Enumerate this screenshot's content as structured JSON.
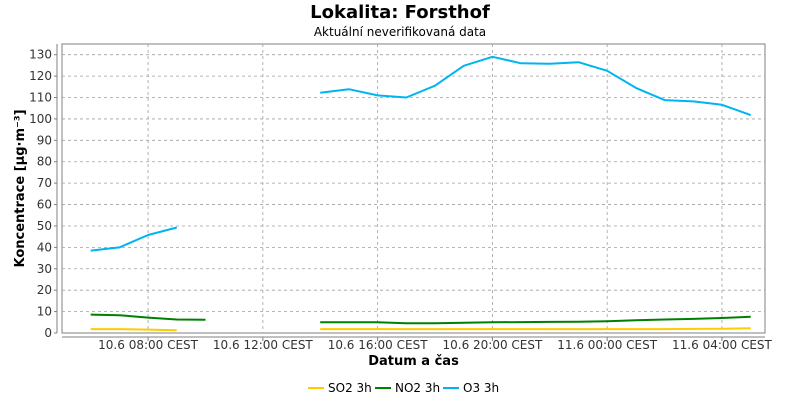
{
  "chart_data": {
    "type": "line",
    "title": "Lokalita: Forsthof",
    "subtitle": "Aktuální neverifikovaná data",
    "xlabel": "Datum a čas",
    "ylabel": "Koncentrace [µg·m⁻³]",
    "ylim": [
      0,
      135
    ],
    "yticks": [
      0,
      10,
      20,
      30,
      40,
      50,
      60,
      70,
      80,
      90,
      100,
      110,
      120,
      130
    ],
    "xlim": [
      "2024-06-10 05:00",
      "2024-06-11 05:30"
    ],
    "xticks": [
      {
        "t": "2024-06-10 08:00",
        "label": "10.6 08:00 CEST"
      },
      {
        "t": "2024-06-10 12:00",
        "label": "10.6 12:00 CEST"
      },
      {
        "t": "2024-06-10 16:00",
        "label": "10.6 16:00 CEST"
      },
      {
        "t": "2024-06-10 20:00",
        "label": "10.6 20:00 CEST"
      },
      {
        "t": "2024-06-11 00:00",
        "label": "11.6 00:00 CEST"
      },
      {
        "t": "2024-06-11 04:00",
        "label": "11.6 04:00 CEST"
      }
    ],
    "grid": true,
    "legend_position": "bottom",
    "series": [
      {
        "name": "SO2 3h",
        "color": "#ffcc00",
        "segments": [
          [
            [
              "2024-06-10 06:00",
              1.8
            ],
            [
              "2024-06-10 07:00",
              1.8
            ],
            [
              "2024-06-10 08:00",
              1.6
            ],
            [
              "2024-06-10 09:00",
              1.3
            ]
          ],
          [
            [
              "2024-06-10 14:00",
              1.8
            ],
            [
              "2024-06-10 15:00",
              1.8
            ],
            [
              "2024-06-10 16:00",
              1.8
            ],
            [
              "2024-06-10 17:00",
              1.8
            ],
            [
              "2024-06-10 18:00",
              1.8
            ],
            [
              "2024-06-10 19:00",
              1.8
            ],
            [
              "2024-06-10 20:00",
              1.8
            ],
            [
              "2024-06-10 21:00",
              1.8
            ],
            [
              "2024-06-10 22:00",
              1.8
            ],
            [
              "2024-06-10 23:00",
              1.8
            ],
            [
              "2024-06-11 00:00",
              1.8
            ],
            [
              "2024-06-11 01:00",
              1.8
            ],
            [
              "2024-06-11 02:00",
              1.8
            ],
            [
              "2024-06-11 03:00",
              1.9
            ],
            [
              "2024-06-11 04:00",
              2.0
            ],
            [
              "2024-06-11 05:00",
              2.2
            ]
          ]
        ]
      },
      {
        "name": "NO2 3h",
        "color": "#008000",
        "segments": [
          [
            [
              "2024-06-10 06:00",
              8.6
            ],
            [
              "2024-06-10 07:00",
              8.3
            ],
            [
              "2024-06-10 08:00",
              7.2
            ],
            [
              "2024-06-10 09:00",
              6.3
            ],
            [
              "2024-06-10 10:00",
              6.2
            ]
          ],
          [
            [
              "2024-06-10 14:00",
              5.0
            ],
            [
              "2024-06-10 15:00",
              5.0
            ],
            [
              "2024-06-10 16:00",
              5.0
            ],
            [
              "2024-06-10 17:00",
              4.6
            ],
            [
              "2024-06-10 18:00",
              4.6
            ],
            [
              "2024-06-10 19:00",
              4.8
            ],
            [
              "2024-06-10 20:00",
              5.0
            ],
            [
              "2024-06-10 21:00",
              5.1
            ],
            [
              "2024-06-10 22:00",
              5.2
            ],
            [
              "2024-06-10 23:00",
              5.3
            ],
            [
              "2024-06-11 00:00",
              5.5
            ],
            [
              "2024-06-11 01:00",
              6.0
            ],
            [
              "2024-06-11 02:00",
              6.3
            ],
            [
              "2024-06-11 03:00",
              6.6
            ],
            [
              "2024-06-11 04:00",
              7.0
            ],
            [
              "2024-06-11 05:00",
              7.6
            ]
          ]
        ]
      },
      {
        "name": "O3 3h",
        "color": "#00b4f0",
        "segments": [
          [
            [
              "2024-06-10 06:00",
              38.5
            ],
            [
              "2024-06-10 07:00",
              40.0
            ],
            [
              "2024-06-10 08:00",
              45.8
            ],
            [
              "2024-06-10 09:00",
              49.3
            ]
          ],
          [
            [
              "2024-06-10 14:00",
              112.2
            ],
            [
              "2024-06-10 15:00",
              113.9
            ],
            [
              "2024-06-10 16:00",
              111.0
            ],
            [
              "2024-06-10 17:00",
              110.0
            ],
            [
              "2024-06-10 18:00",
              115.5
            ],
            [
              "2024-06-10 19:00",
              124.8
            ],
            [
              "2024-06-10 20:00",
              129.0
            ],
            [
              "2024-06-10 21:00",
              126.0
            ],
            [
              "2024-06-10 22:00",
              125.8
            ],
            [
              "2024-06-10 23:00",
              126.5
            ],
            [
              "2024-06-11 00:00",
              122.5
            ],
            [
              "2024-06-11 01:00",
              114.5
            ],
            [
              "2024-06-11 02:00",
              108.8
            ],
            [
              "2024-06-11 03:00",
              108.2
            ],
            [
              "2024-06-11 04:00",
              106.6
            ],
            [
              "2024-06-11 05:00",
              101.8
            ]
          ]
        ]
      }
    ]
  }
}
